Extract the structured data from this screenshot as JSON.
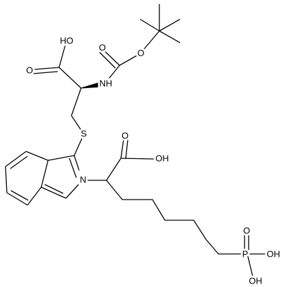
{
  "atoms": [
    {
      "label": "HO"
    },
    {
      "label": "O"
    },
    {
      "label": "O"
    },
    {
      "label": "O"
    },
    {
      "label": "NH"
    },
    {
      "label": "S"
    },
    {
      "label": "N"
    },
    {
      "label": "O"
    },
    {
      "label": "OH"
    },
    {
      "label": "P"
    },
    {
      "label": "O"
    },
    {
      "label": "OH"
    },
    {
      "label": "OH"
    }
  ]
}
